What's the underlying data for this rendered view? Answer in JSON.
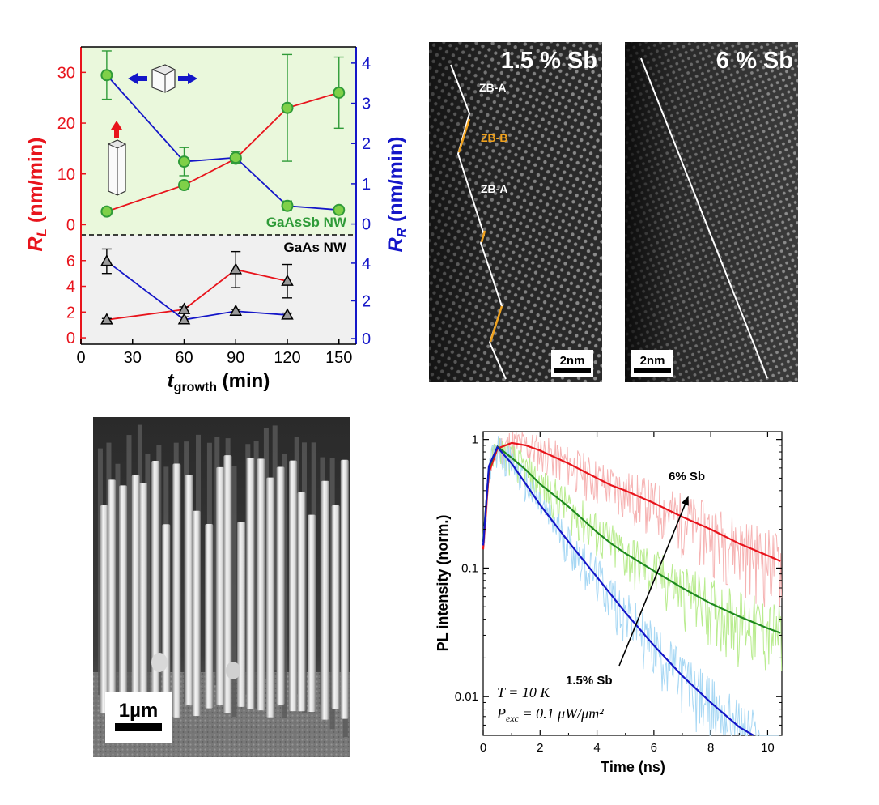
{
  "colors": {
    "red": "#e8141c",
    "blue": "#1416c8",
    "green": "#2f9b38",
    "marker_green": "#7fd048",
    "panel_green": "#eaf8dc",
    "panel_grey": "#f0f0f0"
  },
  "chart_data": [
    {
      "type": "line",
      "panel": "growth-rates",
      "xlabel_main": "t",
      "xlabel_sub": "growth",
      "xlabel_unit": " (min)",
      "xlim": [
        0,
        160
      ],
      "xticks": [
        0,
        30,
        60,
        90,
        120,
        150
      ],
      "ylabel_left_main": "R",
      "ylabel_left_sub": "L",
      "ylabel_left_unit": " (nm/min)",
      "ylabel_right_main": "R",
      "ylabel_right_sub": "R",
      "ylabel_right_unit": " (nm/min)",
      "top": {
        "label": "GaAsSb NW",
        "left_lim": [
          -2,
          35
        ],
        "left_ticks": [
          0,
          10,
          20,
          30
        ],
        "right_lim": [
          -0.27,
          4.4
        ],
        "right_ticks": [
          0,
          1,
          2,
          3,
          4
        ],
        "series": [
          {
            "name": "R_L",
            "axis": "left",
            "x": [
              15,
              60,
              90,
              120,
              150
            ],
            "y": [
              2.6,
              7.8,
              13,
              23,
              26
            ],
            "err": [
              0,
              0,
              0,
              10.5,
              7
            ]
          },
          {
            "name": "R_R",
            "axis": "right",
            "x": [
              15,
              60,
              90,
              120,
              150
            ],
            "y": [
              3.7,
              1.55,
              1.65,
              0.45,
              0.35
            ],
            "err": [
              0.6,
              0.35,
              0.15,
              0.12,
              0.05
            ]
          }
        ]
      },
      "bottom": {
        "label": "GaAs NW",
        "left_lim": [
          -0.5,
          8
        ],
        "left_ticks": [
          0,
          2,
          4,
          6
        ],
        "right_lim": [
          -0.3,
          5.5
        ],
        "right_ticks": [
          0,
          2,
          4
        ],
        "series": [
          {
            "name": "R_L",
            "axis": "left",
            "x": [
              15,
              60,
              90,
              120
            ],
            "y": [
              1.4,
              2.2,
              5.3,
              4.4
            ],
            "err": [
              0.1,
              0.2,
              1.4,
              1.3
            ]
          },
          {
            "name": "R_R",
            "axis": "right",
            "x": [
              15,
              60,
              90,
              120
            ],
            "y": [
              4.1,
              1.0,
              1.45,
              1.25
            ],
            "err": [
              0.65,
              0.15,
              0.1,
              0.1
            ]
          }
        ]
      }
    },
    {
      "type": "line",
      "panel": "pl-decay",
      "xlabel": "Time (ns)",
      "ylabel": "PL intensity (norm.)",
      "xlim": [
        0,
        10.5
      ],
      "xticks": [
        0,
        2,
        4,
        6,
        8,
        10
      ],
      "ylim": [
        0.005,
        1.15
      ],
      "yscale": "log",
      "yticks": [
        0.01,
        0.1,
        1
      ],
      "ytick_labels": [
        "0.01",
        "0.1",
        "1"
      ],
      "series": [
        {
          "color": "red",
          "x": [
            0,
            0.2,
            0.5,
            1.0,
            1.5,
            2.0,
            3.0,
            4.0,
            4.5,
            5.0,
            6.0,
            7.0,
            8.0,
            9.0,
            10.0,
            10.5
          ],
          "y": [
            0.14,
            0.55,
            0.85,
            0.94,
            0.9,
            0.82,
            0.65,
            0.5,
            0.44,
            0.4,
            0.32,
            0.25,
            0.2,
            0.155,
            0.125,
            0.112
          ]
        },
        {
          "color": "green",
          "x": [
            0,
            0.2,
            0.5,
            1.0,
            1.5,
            2.0,
            3.0,
            4.0,
            4.5,
            5.0,
            6.0,
            7.0,
            8.0,
            9.0,
            10.0,
            10.5
          ],
          "y": [
            0.16,
            0.6,
            0.88,
            0.72,
            0.58,
            0.45,
            0.3,
            0.19,
            0.155,
            0.13,
            0.095,
            0.07,
            0.053,
            0.042,
            0.034,
            0.031
          ]
        },
        {
          "color": "blue",
          "x": [
            0,
            0.2,
            0.5,
            1.0,
            1.5,
            2.0,
            3.0,
            4.0,
            5.0,
            6.0,
            7.0,
            8.0,
            9.0,
            9.5
          ],
          "y": [
            0.15,
            0.62,
            0.87,
            0.65,
            0.45,
            0.31,
            0.16,
            0.085,
            0.045,
            0.025,
            0.0145,
            0.009,
            0.0058,
            0.005
          ]
        }
      ],
      "annotations": [
        "6% Sb",
        "1.5% Sb"
      ],
      "conditions": [
        "T = 10 K",
        "P",
        "exc",
        " = 0.1 μW/μm²"
      ]
    }
  ],
  "tem": [
    {
      "title": "1.5 % Sb",
      "scalebar": "2nm",
      "labels": [
        "ZB-A",
        "ZB-B",
        "ZB-A"
      ]
    },
    {
      "title": "6 % Sb",
      "scalebar": "2nm"
    }
  ],
  "sem": {
    "scalebar": "1µm"
  }
}
